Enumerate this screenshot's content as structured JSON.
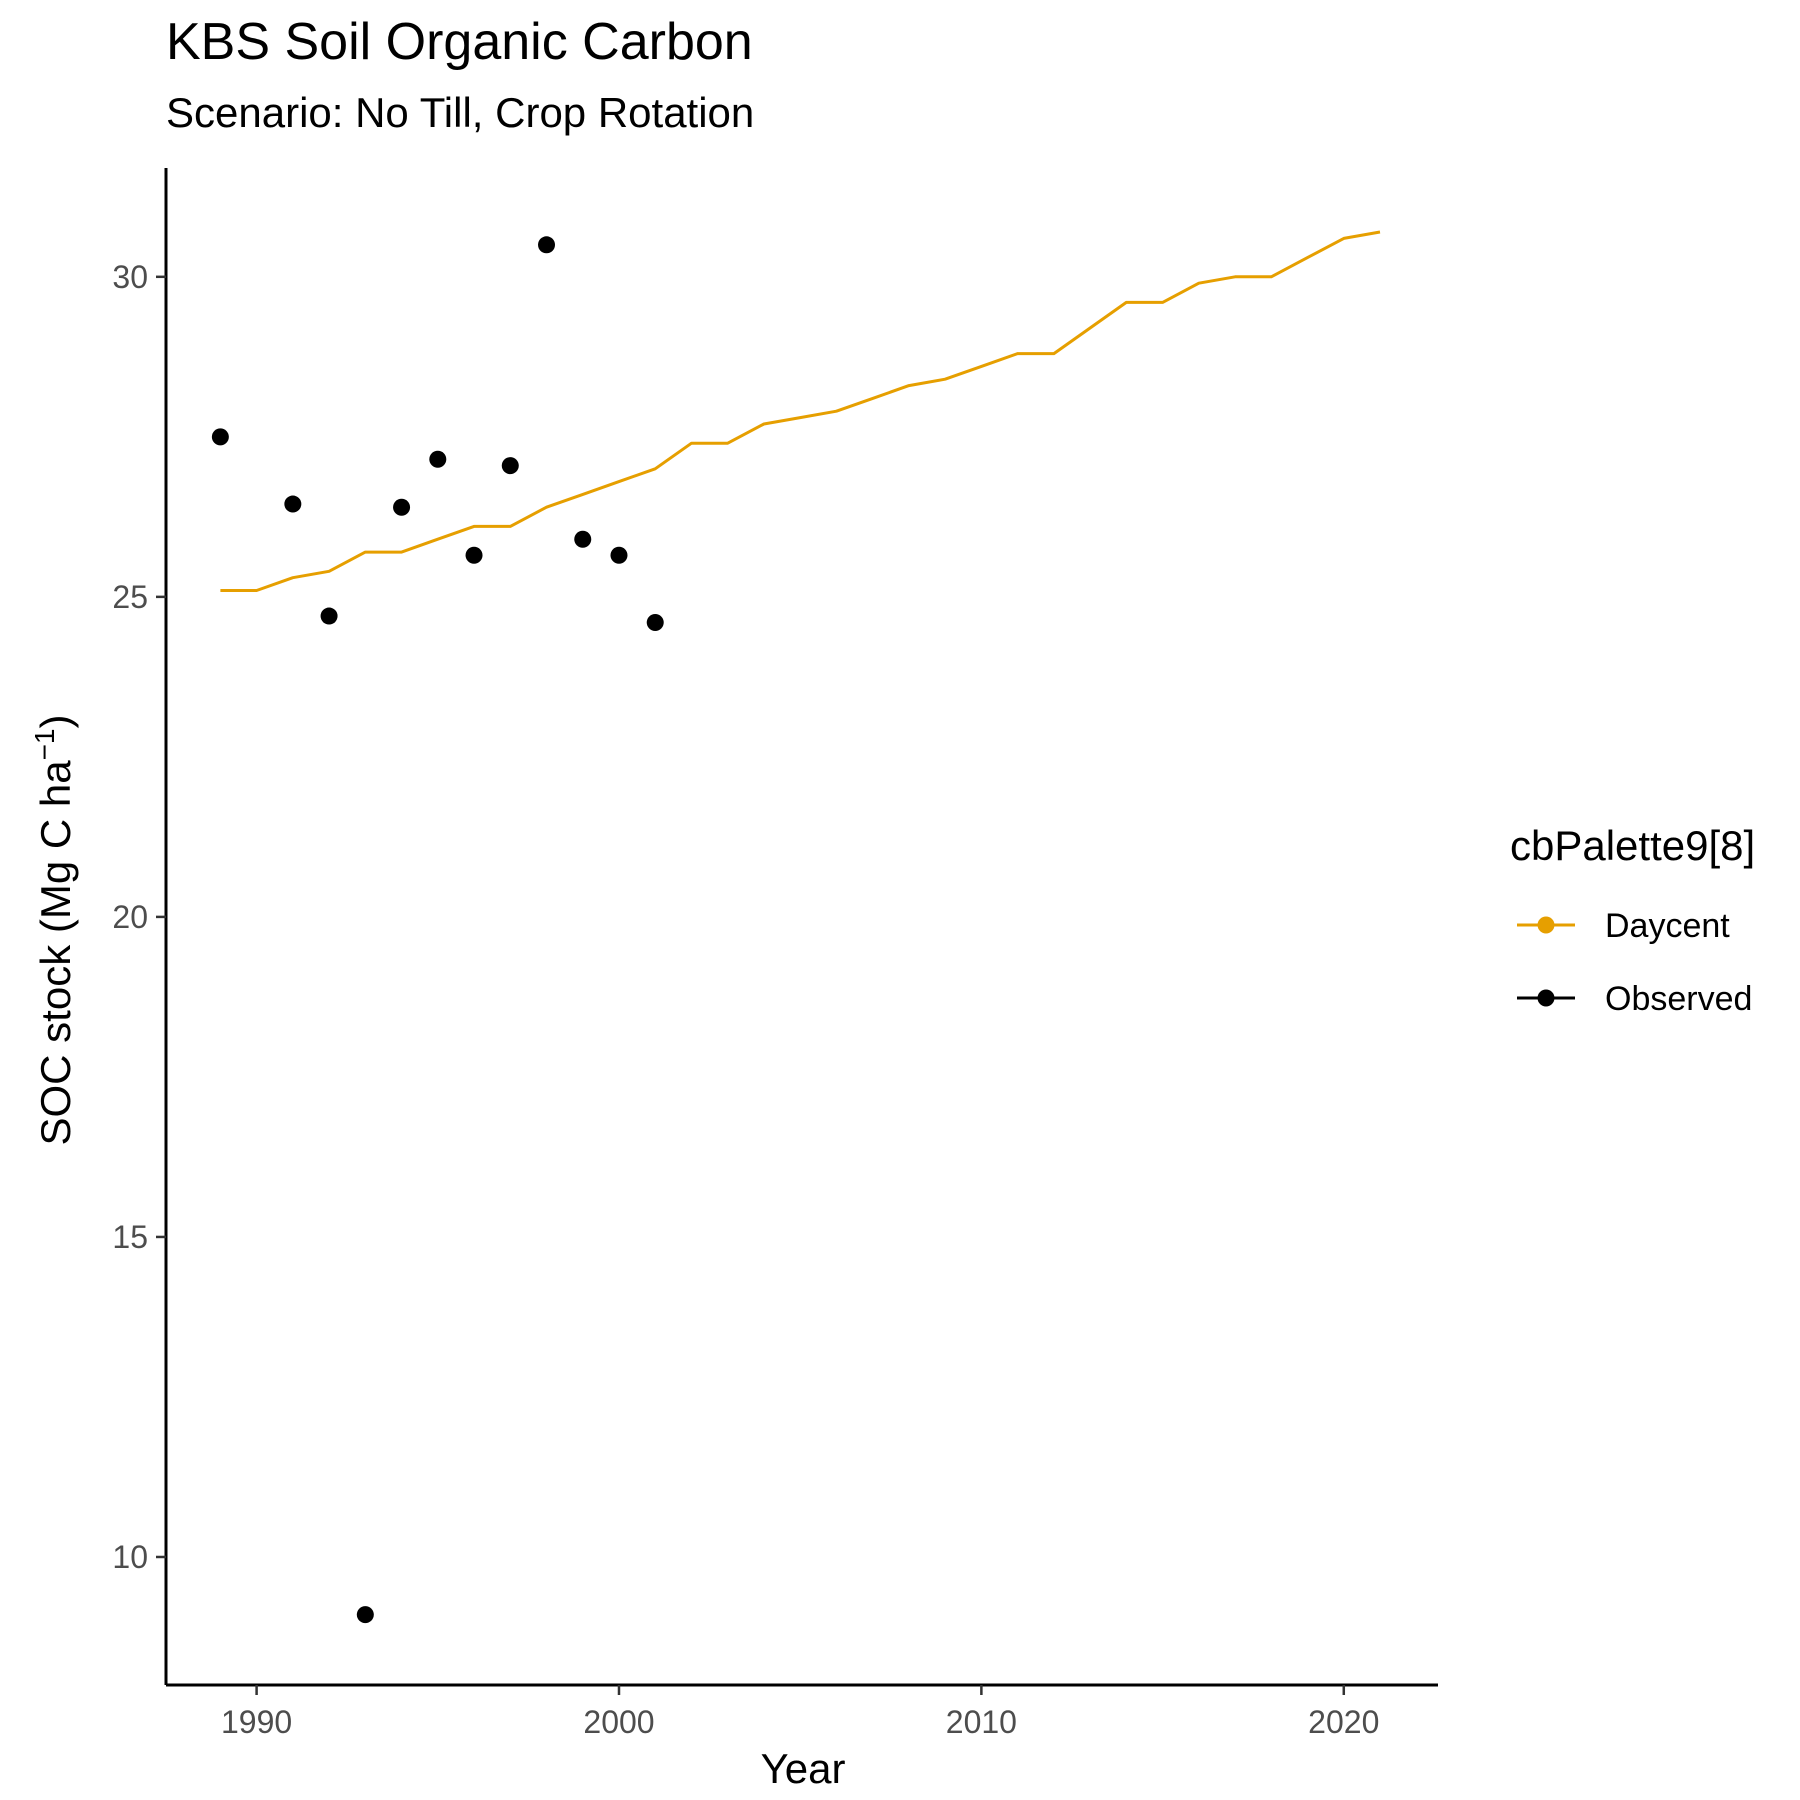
{
  "chart_data": {
    "type": "line",
    "title": "KBS Soil Organic Carbon",
    "subtitle": "Scenario: No Till, Crop Rotation",
    "xlabel": "Year",
    "ylabel_main": "SOC stock (Mg C ha",
    "ylabel_sup": "−1",
    "ylabel_close": ")",
    "xlim": [
      1987.5,
      2022.6
    ],
    "ylim": [
      8.0,
      31.7
    ],
    "xticks": [
      1990,
      2000,
      2010,
      2020
    ],
    "yticks": [
      10,
      15,
      20,
      25,
      30
    ],
    "grid": false,
    "legend": {
      "title": "cbPalette9[8]",
      "position": "right",
      "entries": [
        {
          "label": "Daycent",
          "color": "#E69F00"
        },
        {
          "label": "Observed",
          "color": "#000000"
        }
      ]
    },
    "series": [
      {
        "name": "Daycent",
        "type": "line",
        "color": "#E69F00",
        "x": [
          1989,
          1990,
          1991,
          1992,
          1993,
          1994,
          1995,
          1996,
          1997,
          1998,
          1999,
          2000,
          2001,
          2002,
          2003,
          2004,
          2005,
          2006,
          2007,
          2008,
          2009,
          2010,
          2011,
          2012,
          2013,
          2014,
          2015,
          2016,
          2017,
          2018,
          2019,
          2020,
          2021
        ],
        "y": [
          25.1,
          25.1,
          25.3,
          25.4,
          25.7,
          25.7,
          25.9,
          26.1,
          26.1,
          26.4,
          26.6,
          26.8,
          27.0,
          27.4,
          27.4,
          27.7,
          27.8,
          27.9,
          28.1,
          28.3,
          28.4,
          28.6,
          28.8,
          28.8,
          29.2,
          29.6,
          29.6,
          29.9,
          30.0,
          30.0,
          30.3,
          30.6,
          30.7
        ]
      },
      {
        "name": "Observed",
        "type": "scatter",
        "color": "#000000",
        "x": [
          1989,
          1991,
          1992,
          1993,
          1994,
          1995,
          1996,
          1997,
          1998,
          1999,
          2000,
          2001
        ],
        "y": [
          27.5,
          26.45,
          24.7,
          9.1,
          26.4,
          27.15,
          25.65,
          27.05,
          30.5,
          25.9,
          25.65,
          24.6
        ]
      }
    ]
  }
}
